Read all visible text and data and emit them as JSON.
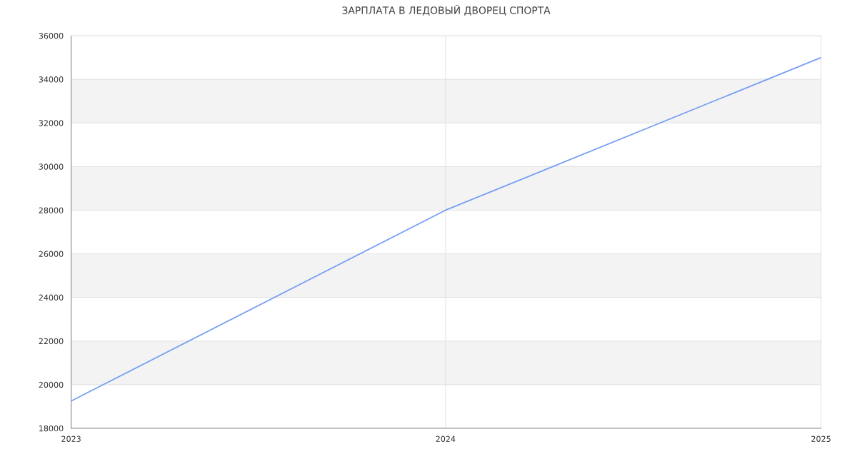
{
  "chart_data": {
    "type": "line",
    "title": "ЗАРПЛАТА В ЛЕДОВЫЙ ДВОРЕЦ СПОРТА",
    "x": [
      "2023",
      "2024",
      "2025"
    ],
    "series": [
      {
        "color": "#779ef5",
        "values": [
          19250,
          28000,
          35000
        ]
      }
    ],
    "xlim": [
      "2023",
      "2025"
    ],
    "xticks": [
      "2023",
      "2024",
      "2025"
    ],
    "ylim": [
      18000,
      36000
    ],
    "yticks": [
      18000,
      20000,
      22000,
      24000,
      26000,
      28000,
      30000,
      32000,
      34000,
      36000
    ],
    "bands": [
      {
        "axis": "y",
        "from": 20000,
        "to": 22000,
        "color": "#f3f3f3"
      },
      {
        "axis": "y",
        "from": 24000,
        "to": 26000,
        "color": "#f3f3f3"
      },
      {
        "axis": "y",
        "from": 28000,
        "to": 30000,
        "color": "#f3f3f3"
      },
      {
        "axis": "y",
        "from": 32000,
        "to": 34000,
        "color": "#f3f3f3"
      }
    ],
    "grid": true,
    "marker": "none",
    "line_style": "solid",
    "legend": false
  }
}
